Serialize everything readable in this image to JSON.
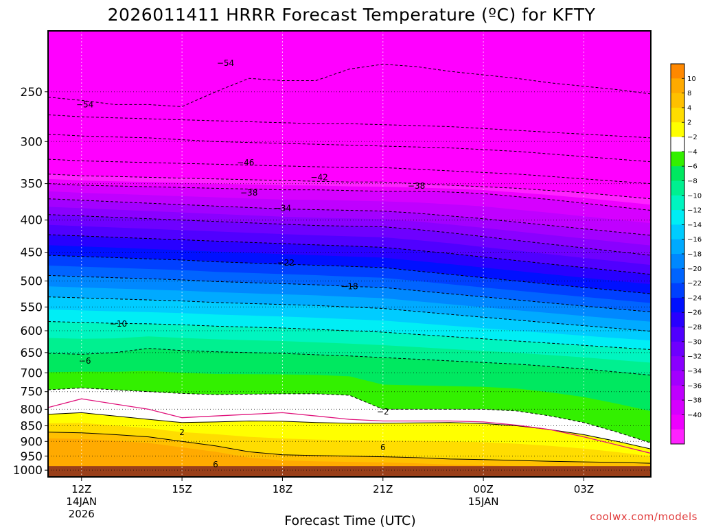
{
  "chart_data": {
    "type": "heatmap",
    "title": "2026011411 HRRR Forecast Temperature (ºC) for KFTY",
    "xlabel": "Forecast Time (UTC)",
    "ylabel": "",
    "x_ticks": [
      {
        "hour": 12,
        "label": "12Z",
        "sub1": "14JAN",
        "sub2": "2026"
      },
      {
        "hour": 15,
        "label": "15Z",
        "sub1": "",
        "sub2": ""
      },
      {
        "hour": 18,
        "label": "18Z",
        "sub1": "",
        "sub2": ""
      },
      {
        "hour": 21,
        "label": "21Z",
        "sub1": "",
        "sub2": ""
      },
      {
        "hour": 24,
        "label": "00Z",
        "sub1": "15JAN",
        "sub2": ""
      },
      {
        "hour": 27,
        "label": "03Z",
        "sub1": "",
        "sub2": ""
      }
    ],
    "xlim": [
      11,
      29
    ],
    "pressure_levels": [
      250,
      300,
      350,
      400,
      450,
      500,
      550,
      600,
      650,
      700,
      750,
      800,
      850,
      900,
      950,
      1000
    ],
    "ylim_hpa": [
      200,
      1025
    ],
    "surface_hpa": 985,
    "hours": [
      11,
      12,
      13,
      14,
      15,
      16,
      17,
      18,
      19,
      20,
      21,
      22,
      23,
      24,
      25,
      26,
      27,
      28,
      29
    ],
    "isotherms": [
      {
        "t": -50,
        "p": [
          300,
          300,
          300,
          300,
          300,
          300,
          300,
          300,
          300,
          300,
          300,
          300,
          300,
          300,
          300,
          300,
          300,
          300,
          300
        ]
      },
      {
        "t": -46,
        "p": [
          320,
          322,
          323,
          324,
          325,
          326,
          327,
          328,
          329,
          330,
          330,
          332,
          334,
          336,
          338,
          341,
          344,
          347,
          350
        ]
      },
      {
        "t": -42,
        "p": [
          338,
          340,
          341,
          342,
          343,
          344,
          345,
          346,
          347,
          348,
          348,
          350,
          352,
          354,
          356,
          359,
          362,
          366,
          370
        ]
      },
      {
        "t": -38,
        "p": [
          350,
          352,
          353,
          354,
          355,
          356,
          357,
          358,
          358,
          359,
          360,
          360,
          361,
          363,
          367,
          371,
          376,
          381,
          386
        ]
      },
      {
        "t": -34,
        "p": [
          370,
          372,
          374,
          376,
          378,
          380,
          382,
          384,
          385,
          386,
          387,
          390,
          394,
          398,
          403,
          408,
          413,
          418,
          423
        ]
      },
      {
        "t": -30,
        "p": [
          392,
          394,
          396,
          398,
          400,
          402,
          404,
          406,
          408,
          409,
          410,
          414,
          419,
          425,
          431,
          437,
          443,
          449,
          455
        ]
      },
      {
        "t": -26,
        "p": [
          422,
          424,
          426,
          428,
          430,
          432,
          434,
          436,
          438,
          440,
          442,
          447,
          452,
          458,
          464,
          470,
          476,
          482,
          488
        ]
      },
      {
        "t": -22,
        "p": [
          455,
          457,
          459,
          461,
          463,
          466,
          468,
          470,
          472,
          474,
          476,
          482,
          488,
          494,
          500,
          506,
          512,
          518,
          524
        ]
      },
      {
        "t": -18,
        "p": [
          490,
          492,
          494,
          496,
          498,
          501,
          503,
          505,
          507,
          510,
          512,
          518,
          524,
          530,
          536,
          542,
          548,
          554,
          560
        ]
      },
      {
        "t": -14,
        "p": [
          530,
          532,
          534,
          536,
          538,
          541,
          543,
          545,
          547,
          550,
          553,
          559,
          565,
          571,
          577,
          583,
          589,
          595,
          601
        ]
      },
      {
        "t": -10,
        "p": [
          580,
          582,
          584,
          585,
          587,
          590,
          592,
          594,
          597,
          600,
          603,
          608,
          613,
          618,
          623,
          628,
          633,
          638,
          643
        ]
      },
      {
        "t": -6,
        "p": [
          652,
          654,
          650,
          640,
          645,
          648,
          650,
          652,
          655,
          658,
          662,
          666,
          670,
          674,
          678,
          684,
          690,
          698,
          706
        ]
      },
      {
        "t": -2,
        "p": [
          745,
          740,
          745,
          750,
          755,
          758,
          757,
          756,
          756,
          760,
          800,
          800,
          800,
          800,
          805,
          820,
          840,
          870,
          905
        ]
      },
      {
        "t": 2,
        "p": [
          815,
          810,
          820,
          830,
          840,
          838,
          835,
          836,
          840,
          842,
          842,
          841,
          840,
          843,
          850,
          862,
          878,
          900,
          925
        ]
      },
      {
        "t": 6,
        "p": [
          870,
          872,
          878,
          885,
          900,
          915,
          935,
          945,
          948,
          950,
          952,
          955,
          960,
          962,
          965,
          968,
          970,
          972,
          975
        ]
      }
    ],
    "special_contours": [
      {
        "t": 0,
        "style": "magenta",
        "p": [
          795,
          770,
          785,
          800,
          825,
          820,
          815,
          810,
          820,
          830,
          835,
          835,
          835,
          838,
          848,
          862,
          885,
          912,
          940
        ]
      }
    ],
    "contour_labels": [
      {
        "text": "-54",
        "hour": 16.3,
        "p": 225
      },
      {
        "text": "-54",
        "hour": 12.1,
        "p": 262
      },
      {
        "text": "-46",
        "hour": 16.9,
        "p": 324
      },
      {
        "text": "-42",
        "hour": 19.1,
        "p": 342
      },
      {
        "text": "-38",
        "hour": 17.0,
        "p": 362
      },
      {
        "text": "-38",
        "hour": 22.0,
        "p": 353
      },
      {
        "text": "-34",
        "hour": 18.0,
        "p": 383
      },
      {
        "text": "-22",
        "hour": 18.1,
        "p": 468
      },
      {
        "text": "-18",
        "hour": 20.0,
        "p": 510
      },
      {
        "text": "-10",
        "hour": 13.1,
        "p": 585
      },
      {
        "text": "-6",
        "hour": 12.1,
        "p": 670
      },
      {
        "text": "-2",
        "hour": 21.0,
        "p": 807
      },
      {
        "text": "2",
        "hour": 15.0,
        "p": 870
      },
      {
        "text": "6",
        "hour": 21.0,
        "p": 920
      },
      {
        "text": "6",
        "hour": 16.0,
        "p": 980
      }
    ],
    "colorbar": {
      "bins": [
        {
          "lo": -42,
          "hi": -40,
          "color": "#ff22ff"
        },
        {
          "lo": -40,
          "hi": -38,
          "color": "#ee00ff"
        },
        {
          "lo": -38,
          "hi": -36,
          "color": "#d600ff"
        },
        {
          "lo": -36,
          "hi": -34,
          "color": "#bf00ff"
        },
        {
          "lo": -34,
          "hi": -32,
          "color": "#a300ff"
        },
        {
          "lo": -32,
          "hi": -30,
          "color": "#8a00ff"
        },
        {
          "lo": -30,
          "hi": -28,
          "color": "#6e00ff"
        },
        {
          "lo": -28,
          "hi": -26,
          "color": "#5000ff"
        },
        {
          "lo": -26,
          "hi": -24,
          "color": "#2800ff"
        },
        {
          "lo": -24,
          "hi": -22,
          "color": "#0010ff"
        },
        {
          "lo": -22,
          "hi": -20,
          "color": "#0040ff"
        },
        {
          "lo": -20,
          "hi": -18,
          "color": "#0064ff"
        },
        {
          "lo": -18,
          "hi": -16,
          "color": "#0088ff"
        },
        {
          "lo": -16,
          "hi": -14,
          "color": "#00aaff"
        },
        {
          "lo": -14,
          "hi": -12,
          "color": "#00ccff"
        },
        {
          "lo": -12,
          "hi": -10,
          "color": "#00eef5"
        },
        {
          "lo": -10,
          "hi": -8,
          "color": "#00f5c0"
        },
        {
          "lo": -8,
          "hi": -6,
          "color": "#00f090"
        },
        {
          "lo": -6,
          "hi": -4,
          "color": "#00e860"
        },
        {
          "lo": -4,
          "hi": -2,
          "color": "#33f000"
        },
        {
          "lo": -2,
          "hi": 2,
          "color": "#ffffff"
        },
        {
          "lo": 2,
          "hi": 4,
          "color": "#ffff00"
        },
        {
          "lo": 4,
          "hi": 6,
          "color": "#ffdd00"
        },
        {
          "lo": 6,
          "hi": 8,
          "color": "#ffc000"
        },
        {
          "lo": 8,
          "hi": 10,
          "color": "#ffaa00"
        },
        {
          "lo": 10,
          "hi": 12,
          "color": "#ff8800"
        }
      ],
      "labels": [
        "10",
        "8",
        "4",
        "2",
        "-2",
        "-4",
        "-6",
        "-8",
        "-10",
        "-12",
        "-14",
        "-16",
        "-18",
        "-20",
        "-22",
        "-24",
        "-26",
        "-28",
        "-30",
        "-32",
        "-34",
        "-36",
        "-38",
        "-40"
      ]
    },
    "fill_colors": {
      "cold": "#ff00ff",
      "warmest": "#ff9900",
      "ground": "#993f1a"
    }
  },
  "watermark": "coolwx.com/models"
}
